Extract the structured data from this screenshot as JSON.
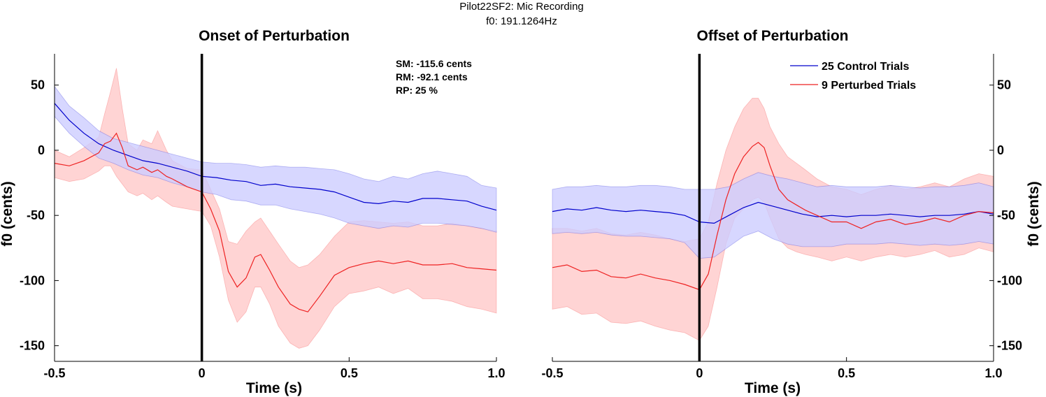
{
  "figure": {
    "suptitle": "Pilot22SF2: Mic Recording",
    "subtitle": "f0: 191.1264Hz"
  },
  "colors": {
    "control": "#0000cc",
    "control_band": "#ccccff",
    "perturbed": "#ee2222",
    "perturbed_band": "#ffcccc",
    "marker": "#000000"
  },
  "chart_data": [
    {
      "type": "line",
      "title": "Onset of Perturbation",
      "xlabel": "Time (s)",
      "ylabel": "f0 (cents)",
      "xlim": [
        -0.5,
        1.0
      ],
      "ylim": [
        -162,
        74
      ],
      "xticks": [
        "-0.5",
        "0",
        "0.5",
        "1.0"
      ],
      "yticks": [
        "-150",
        "-100",
        "-50",
        "0",
        "50"
      ],
      "ytick_side": "left",
      "event_line_x": 0,
      "annotations": [
        "SM: -115.6 cents",
        "RM: -92.1 cents",
        "RP: 25 %"
      ],
      "series": [
        {
          "name": "25 Control Trials",
          "color_key": "control",
          "x": [
            -0.5,
            -0.45,
            -0.4,
            -0.35,
            -0.3,
            -0.25,
            -0.2,
            -0.15,
            -0.1,
            -0.05,
            0.0,
            0.05,
            0.1,
            0.15,
            0.2,
            0.25,
            0.3,
            0.35,
            0.4,
            0.45,
            0.5,
            0.55,
            0.6,
            0.65,
            0.7,
            0.75,
            0.8,
            0.85,
            0.9,
            0.95,
            1.0
          ],
          "y": [
            36,
            23,
            13,
            5,
            0,
            -4,
            -8,
            -10,
            -13,
            -16,
            -20,
            -21,
            -23,
            -24,
            -27,
            -26,
            -28,
            -29,
            -30,
            -32,
            -36,
            -40,
            -41,
            -39,
            -40,
            -37,
            -37,
            -38,
            -39,
            -43,
            -46
          ],
          "lower": [
            26,
            13,
            3,
            -6,
            -10,
            -15,
            -19,
            -21,
            -25,
            -28,
            -32,
            -34,
            -38,
            -39,
            -42,
            -42,
            -45,
            -47,
            -49,
            -52,
            -56,
            -58,
            -60,
            -58,
            -59,
            -56,
            -56,
            -57,
            -58,
            -60,
            -63
          ],
          "upper": [
            49,
            34,
            25,
            15,
            9,
            6,
            3,
            0,
            -3,
            -6,
            -9,
            -10,
            -10,
            -11,
            -13,
            -12,
            -13,
            -13,
            -14,
            -15,
            -18,
            -22,
            -24,
            -20,
            -22,
            -18,
            -16,
            -18,
            -20,
            -27,
            -29
          ]
        },
        {
          "name": "9 Perturbed Trials",
          "color_key": "perturbed",
          "x": [
            -0.5,
            -0.45,
            -0.4,
            -0.35,
            -0.33,
            -0.31,
            -0.29,
            -0.27,
            -0.25,
            -0.22,
            -0.2,
            -0.17,
            -0.15,
            -0.12,
            -0.1,
            -0.05,
            0.0,
            0.03,
            0.06,
            0.09,
            0.12,
            0.15,
            0.18,
            0.2,
            0.23,
            0.26,
            0.3,
            0.33,
            0.36,
            0.4,
            0.45,
            0.5,
            0.55,
            0.6,
            0.65,
            0.7,
            0.75,
            0.8,
            0.85,
            0.9,
            0.95,
            1.0
          ],
          "y": [
            -10,
            -12,
            -8,
            -2,
            5,
            7,
            13,
            2,
            -12,
            -15,
            -13,
            -17,
            -15,
            -20,
            -22,
            -28,
            -32,
            -45,
            -62,
            -93,
            -105,
            -98,
            -82,
            -80,
            -92,
            -105,
            -118,
            -122,
            -124,
            -112,
            -96,
            -90,
            -87,
            -85,
            -87,
            -85,
            -88,
            -88,
            -87,
            -90,
            -91,
            -92
          ],
          "lower": [
            -21,
            -24,
            -22,
            -16,
            -12,
            -12,
            -20,
            -26,
            -32,
            -35,
            -33,
            -38,
            -35,
            -40,
            -43,
            -45,
            -47,
            -58,
            -82,
            -115,
            -132,
            -124,
            -105,
            -105,
            -118,
            -135,
            -148,
            -152,
            -150,
            -138,
            -120,
            -110,
            -108,
            -105,
            -110,
            -106,
            -114,
            -114,
            -116,
            -120,
            -122,
            -125
          ],
          "upper": [
            0,
            -5,
            2,
            10,
            28,
            45,
            63,
            32,
            5,
            0,
            8,
            5,
            15,
            0,
            -8,
            -14,
            -15,
            -30,
            -45,
            -70,
            -72,
            -62,
            -55,
            -52,
            -62,
            -72,
            -85,
            -90,
            -88,
            -80,
            -66,
            -55,
            -54,
            -55,
            -56,
            -55,
            -58,
            -58,
            -56,
            -58,
            -60,
            -62
          ]
        }
      ]
    },
    {
      "type": "line",
      "title": "Offset of Perturbation",
      "xlabel": "Time (s)",
      "ylabel": "f0 (cents)",
      "xlim": [
        -0.5,
        1.0
      ],
      "ylim": [
        -162,
        74
      ],
      "xticks": [
        "-0.5",
        "0",
        "0.5",
        "1.0"
      ],
      "yticks": [
        "-150",
        "-100",
        "-50",
        "0",
        "50"
      ],
      "ytick_side": "right",
      "event_line_x": 0,
      "legend_position": "top-right",
      "series": [
        {
          "name": "25 Control Trials",
          "color_key": "control",
          "x": [
            -0.5,
            -0.45,
            -0.4,
            -0.35,
            -0.3,
            -0.25,
            -0.2,
            -0.15,
            -0.1,
            -0.05,
            0.0,
            0.05,
            0.1,
            0.15,
            0.2,
            0.25,
            0.3,
            0.35,
            0.4,
            0.45,
            0.5,
            0.55,
            0.6,
            0.65,
            0.7,
            0.75,
            0.8,
            0.85,
            0.9,
            0.95,
            1.0
          ],
          "y": [
            -47,
            -45,
            -46,
            -44,
            -46,
            -47,
            -46,
            -47,
            -48,
            -50,
            -55,
            -56,
            -50,
            -44,
            -40,
            -43,
            -46,
            -49,
            -51,
            -50,
            -51,
            -50,
            -50,
            -49,
            -50,
            -51,
            -50,
            -50,
            -49,
            -47,
            -49
          ],
          "lower": [
            -64,
            -63,
            -64,
            -63,
            -65,
            -66,
            -66,
            -67,
            -68,
            -71,
            -83,
            -82,
            -74,
            -66,
            -62,
            -68,
            -72,
            -74,
            -74,
            -74,
            -72,
            -72,
            -72,
            -71,
            -72,
            -73,
            -72,
            -73,
            -72,
            -70,
            -72
          ],
          "upper": [
            -30,
            -28,
            -28,
            -27,
            -28,
            -28,
            -27,
            -27,
            -28,
            -30,
            -30,
            -30,
            -28,
            -22,
            -17,
            -20,
            -22,
            -25,
            -28,
            -27,
            -28,
            -28,
            -28,
            -27,
            -28,
            -29,
            -28,
            -28,
            -27,
            -25,
            -28
          ]
        },
        {
          "name": "9 Perturbed Trials",
          "color_key": "perturbed",
          "x": [
            -0.5,
            -0.45,
            -0.4,
            -0.35,
            -0.3,
            -0.25,
            -0.2,
            -0.15,
            -0.1,
            -0.05,
            0.0,
            0.03,
            0.06,
            0.09,
            0.12,
            0.15,
            0.18,
            0.2,
            0.22,
            0.24,
            0.27,
            0.3,
            0.33,
            0.36,
            0.4,
            0.45,
            0.5,
            0.55,
            0.6,
            0.65,
            0.7,
            0.75,
            0.8,
            0.85,
            0.9,
            0.95,
            1.0
          ],
          "y": [
            -90,
            -88,
            -93,
            -92,
            -97,
            -98,
            -95,
            -98,
            -100,
            -103,
            -107,
            -95,
            -65,
            -38,
            -18,
            -5,
            3,
            6,
            2,
            -12,
            -30,
            -38,
            -42,
            -46,
            -50,
            -55,
            -55,
            -60,
            -55,
            -53,
            -57,
            -55,
            -52,
            -55,
            -50,
            -47,
            -48
          ],
          "lower": [
            -122,
            -120,
            -126,
            -125,
            -132,
            -133,
            -131,
            -135,
            -138,
            -140,
            -146,
            -135,
            -105,
            -72,
            -52,
            -45,
            -38,
            -36,
            -40,
            -52,
            -68,
            -75,
            -78,
            -80,
            -82,
            -85,
            -82,
            -85,
            -82,
            -80,
            -82,
            -80,
            -77,
            -82,
            -80,
            -75,
            -78
          ],
          "upper": [
            -60,
            -60,
            -62,
            -60,
            -64,
            -65,
            -63,
            -65,
            -68,
            -70,
            -68,
            -55,
            -25,
            0,
            18,
            32,
            40,
            40,
            32,
            18,
            5,
            -5,
            -10,
            -15,
            -22,
            -28,
            -30,
            -34,
            -30,
            -27,
            -30,
            -28,
            -25,
            -28,
            -22,
            -18,
            -20
          ]
        }
      ]
    }
  ]
}
